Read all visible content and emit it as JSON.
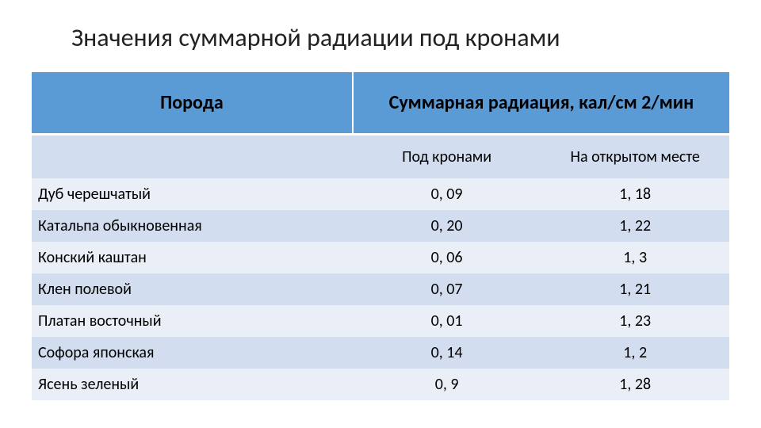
{
  "title": "Значения суммарной радиации под кронами",
  "table": {
    "type": "table",
    "background_color": "#ffffff",
    "header_bg": "#5b9bd5",
    "band_colors": [
      "#eaeff7",
      "#d2deef"
    ],
    "text_color": "#000000",
    "title_fontsize": 32,
    "header_fontsize": 24,
    "cell_fontsize": 20,
    "columns": {
      "species": {
        "label": "Порода",
        "width_pct": 46,
        "align": "left"
      },
      "radiation_group": {
        "label": "Суммарная радиация, кал/см 2/мин",
        "width_pct": 54,
        "align": "center"
      },
      "under_crown": {
        "label": "Под кронами",
        "width_pct": 27,
        "align": "center"
      },
      "open_area": {
        "label": "На открытом месте",
        "width_pct": 27,
        "align": "center"
      }
    },
    "rows": [
      {
        "species": "Дуб черешчатый",
        "under_crown": "0, 09",
        "open_area": "1, 18"
      },
      {
        "species": "Катальпа обыкновенная",
        "under_crown": "0, 20",
        "open_area": "1, 22"
      },
      {
        "species": "Конский каштан",
        "under_crown": "0, 06",
        "open_area": "1, 3"
      },
      {
        "species": "Клен полевой",
        "under_crown": "0, 07",
        "open_area": "1, 21"
      },
      {
        "species": "Платан восточный",
        "under_crown": "0, 01",
        "open_area": "1, 23"
      },
      {
        "species": "Софора японская",
        "under_crown": "0, 14",
        "open_area": "1, 2"
      },
      {
        "species": "Ясень зеленый",
        "under_crown": "0, 9",
        "open_area": "1, 28"
      }
    ]
  }
}
